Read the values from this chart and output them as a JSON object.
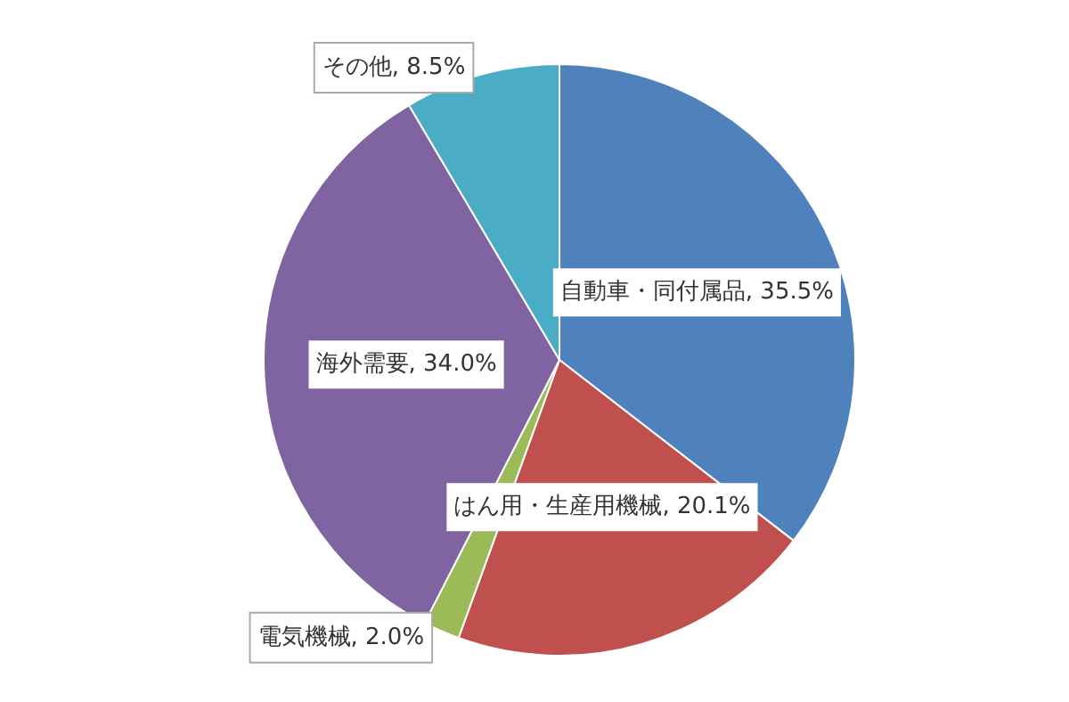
{
  "chart_data": {
    "type": "pie",
    "categories": [
      "自動車・同付属品",
      "はん用・生産用機械",
      "電気機械",
      "海外需要",
      "その他"
    ],
    "values": [
      35.5,
      20.1,
      2.0,
      34.0,
      8.5
    ],
    "value_labels": [
      "35.5%",
      "20.1%",
      "2.0%",
      "34.0%",
      "8.5%"
    ],
    "colors": [
      "#4f81bd",
      "#c0504d",
      "#9bbb59",
      "#8064a2",
      "#4bacc6"
    ],
    "legend": false
  }
}
